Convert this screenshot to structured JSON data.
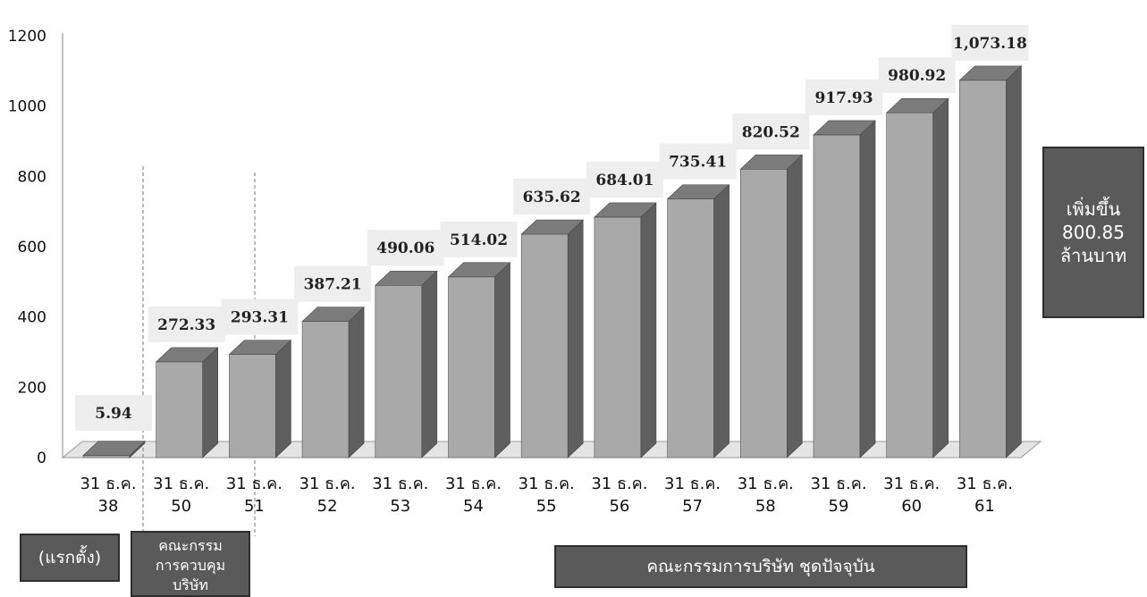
{
  "chart_data": {
    "type": "bar",
    "style": "3d-columns",
    "categories": [
      [
        "31 ธ.ค.",
        "38"
      ],
      [
        "31 ธ.ค.",
        "50"
      ],
      [
        "31 ธ.ค.",
        "51"
      ],
      [
        "31 ธ.ค.",
        "52"
      ],
      [
        "31 ธ.ค.",
        "53"
      ],
      [
        "31 ธ.ค.",
        "54"
      ],
      [
        "31 ธ.ค.",
        "55"
      ],
      [
        "31 ธ.ค.",
        "56"
      ],
      [
        "31 ธ.ค.",
        "57"
      ],
      [
        "31 ธ.ค.",
        "58"
      ],
      [
        "31 ธ.ค.",
        "59"
      ],
      [
        "31 ธ.ค.",
        "60"
      ],
      [
        "31 ธ.ค.",
        "61"
      ]
    ],
    "values": [
      5.94,
      272.33,
      293.31,
      387.21,
      490.06,
      514.02,
      635.62,
      684.01,
      735.41,
      820.52,
      917.93,
      980.92,
      1073.18
    ],
    "data_labels": [
      "5.94",
      "272.33",
      "293.31",
      "387.21",
      "490.06",
      "514.02",
      "635.62",
      "684.01",
      "735.41",
      "820.52",
      "917.93",
      "980.92",
      "1,073.18"
    ],
    "yticks": [
      "0",
      "200",
      "400",
      "600",
      "800",
      "1000",
      "1200"
    ],
    "ylim": [
      0,
      1200
    ],
    "grid": false,
    "legend": "none",
    "colors": {
      "bar_front": "#a9a9a9",
      "bar_side": "#5f5f5f",
      "bar_top": "#7b7b7b",
      "label_bg": "#eeeeee"
    }
  },
  "annotations": {
    "increase": {
      "lines": [
        "เพิ่มขึ้น",
        "800.85",
        "ล้านบาท"
      ]
    },
    "founded": {
      "text": "(แรกตั้ง)"
    },
    "control_committee": {
      "lines": [
        "คณะกรรม",
        "การควบคุม",
        "บริษัท"
      ]
    },
    "current_board": {
      "text": "คณะกรรมการบริษัท ชุดปัจจุบัน"
    }
  }
}
